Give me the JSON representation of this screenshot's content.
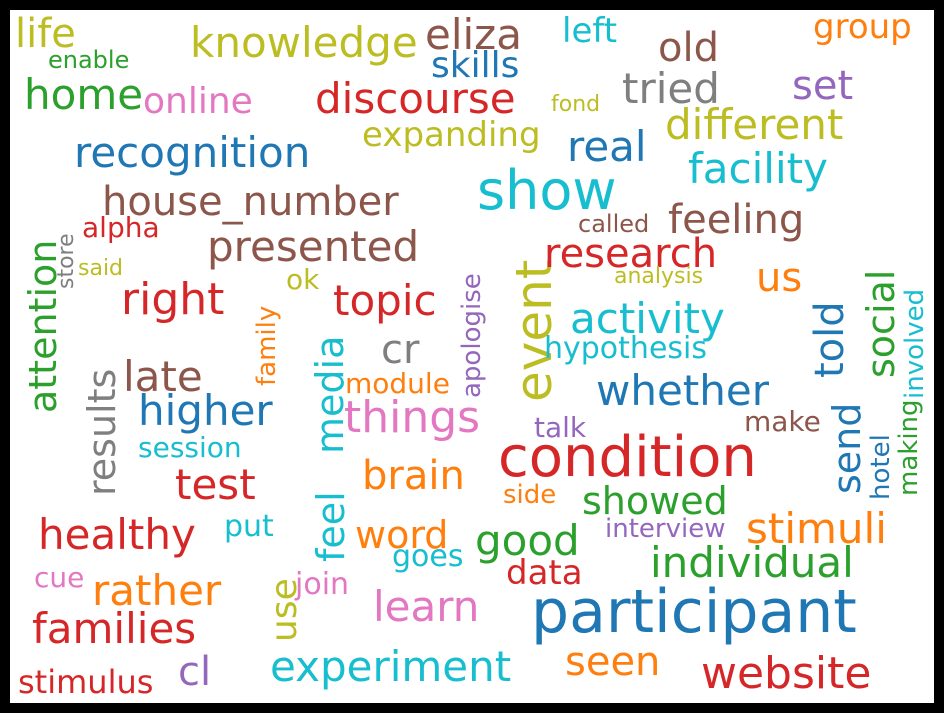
{
  "palette": {
    "blue": "#1f77b4",
    "orange": "#ff7f0e",
    "green": "#2ca02c",
    "red": "#d62728",
    "purple": "#9467bd",
    "brown": "#8c564b",
    "pink": "#e377c2",
    "gray": "#7f7f7f",
    "olive": "#bcbd22",
    "cyan": "#17becf"
  },
  "words": [
    {
      "id": "life",
      "text": "life",
      "color": "olive"
    },
    {
      "id": "enable",
      "text": "enable",
      "color": "green"
    },
    {
      "id": "home",
      "text": "home",
      "color": "green"
    },
    {
      "id": "knowledge",
      "text": "knowledge",
      "color": "olive"
    },
    {
      "id": "online",
      "text": "online",
      "color": "pink"
    },
    {
      "id": "eliza",
      "text": "eliza",
      "color": "brown"
    },
    {
      "id": "skills",
      "text": "skills",
      "color": "blue"
    },
    {
      "id": "left",
      "text": "left",
      "color": "cyan"
    },
    {
      "id": "old",
      "text": "old",
      "color": "brown"
    },
    {
      "id": "group",
      "text": "group",
      "color": "orange"
    },
    {
      "id": "discourse",
      "text": "discourse",
      "color": "red"
    },
    {
      "id": "fond",
      "text": "fond",
      "color": "olive"
    },
    {
      "id": "tried",
      "text": "tried",
      "color": "gray"
    },
    {
      "id": "set",
      "text": "set",
      "color": "purple"
    },
    {
      "id": "different",
      "text": "different",
      "color": "olive"
    },
    {
      "id": "expanding",
      "text": "expanding",
      "color": "olive"
    },
    {
      "id": "real",
      "text": "real",
      "color": "blue"
    },
    {
      "id": "recognition",
      "text": "recognition",
      "color": "blue"
    },
    {
      "id": "facility",
      "text": "facility",
      "color": "cyan"
    },
    {
      "id": "show",
      "text": "show",
      "color": "cyan"
    },
    {
      "id": "house_number",
      "text": "house_number",
      "color": "brown"
    },
    {
      "id": "feeling",
      "text": "feeling",
      "color": "brown"
    },
    {
      "id": "called",
      "text": "called",
      "color": "brown"
    },
    {
      "id": "attention",
      "text": "attention",
      "color": "green",
      "v": true
    },
    {
      "id": "store",
      "text": "store",
      "color": "gray",
      "v": true
    },
    {
      "id": "alpha",
      "text": "alpha",
      "color": "red"
    },
    {
      "id": "presented",
      "text": "presented",
      "color": "brown"
    },
    {
      "id": "apologise",
      "text": "apologise",
      "color": "purple",
      "v": true
    },
    {
      "id": "event",
      "text": "event",
      "color": "olive",
      "v": true
    },
    {
      "id": "research",
      "text": "research",
      "color": "red"
    },
    {
      "id": "involved",
      "text": "involved",
      "color": "cyan",
      "v": true
    },
    {
      "id": "said",
      "text": "said",
      "color": "olive"
    },
    {
      "id": "analysis",
      "text": "analysis",
      "color": "olive"
    },
    {
      "id": "us",
      "text": "us",
      "color": "orange"
    },
    {
      "id": "social",
      "text": "social",
      "color": "green",
      "v": true
    },
    {
      "id": "right",
      "text": "right",
      "color": "red"
    },
    {
      "id": "ok",
      "text": "ok",
      "color": "olive"
    },
    {
      "id": "topic",
      "text": "topic",
      "color": "red"
    },
    {
      "id": "family",
      "text": "family",
      "color": "orange",
      "v": true
    },
    {
      "id": "activity",
      "text": "activity",
      "color": "cyan"
    },
    {
      "id": "told",
      "text": "told",
      "color": "blue",
      "v": true
    },
    {
      "id": "results",
      "text": "results",
      "color": "gray",
      "v": true
    },
    {
      "id": "cr",
      "text": "cr",
      "color": "gray"
    },
    {
      "id": "hypothesis",
      "text": "hypothesis",
      "color": "cyan"
    },
    {
      "id": "late",
      "text": "late",
      "color": "brown"
    },
    {
      "id": "media",
      "text": "media",
      "color": "cyan",
      "v": true
    },
    {
      "id": "module",
      "text": "module",
      "color": "orange"
    },
    {
      "id": "whether",
      "text": "whether",
      "color": "blue"
    },
    {
      "id": "higher",
      "text": "higher",
      "color": "blue"
    },
    {
      "id": "things",
      "text": "things",
      "color": "pink"
    },
    {
      "id": "send",
      "text": "send",
      "color": "blue",
      "v": true
    },
    {
      "id": "hotel",
      "text": "hotel",
      "color": "blue",
      "v": true
    },
    {
      "id": "making",
      "text": "making",
      "color": "green",
      "v": true
    },
    {
      "id": "make",
      "text": "make",
      "color": "brown"
    },
    {
      "id": "talk",
      "text": "talk",
      "color": "purple"
    },
    {
      "id": "session",
      "text": "session",
      "color": "cyan"
    },
    {
      "id": "condition",
      "text": "condition",
      "color": "red"
    },
    {
      "id": "feel",
      "text": "feel",
      "color": "cyan",
      "v": true
    },
    {
      "id": "test",
      "text": "test",
      "color": "red"
    },
    {
      "id": "brain",
      "text": "brain",
      "color": "orange"
    },
    {
      "id": "side",
      "text": "side",
      "color": "orange"
    },
    {
      "id": "showed",
      "text": "showed",
      "color": "green"
    },
    {
      "id": "stimuli",
      "text": "stimuli",
      "color": "orange"
    },
    {
      "id": "healthy",
      "text": "healthy",
      "color": "red"
    },
    {
      "id": "put",
      "text": "put",
      "color": "cyan"
    },
    {
      "id": "word",
      "text": "word",
      "color": "orange"
    },
    {
      "id": "good",
      "text": "good",
      "color": "green"
    },
    {
      "id": "interview",
      "text": "interview",
      "color": "purple"
    },
    {
      "id": "goes",
      "text": "goes",
      "color": "cyan"
    },
    {
      "id": "individual",
      "text": "individual",
      "color": "green"
    },
    {
      "id": "cue",
      "text": "cue",
      "color": "pink"
    },
    {
      "id": "data",
      "text": "data",
      "color": "red"
    },
    {
      "id": "rather",
      "text": "rather",
      "color": "orange"
    },
    {
      "id": "use",
      "text": "use",
      "color": "olive",
      "v": true
    },
    {
      "id": "join",
      "text": "join",
      "color": "pink"
    },
    {
      "id": "families",
      "text": "families",
      "color": "red"
    },
    {
      "id": "learn",
      "text": "learn",
      "color": "pink"
    },
    {
      "id": "participant",
      "text": "participant",
      "color": "blue"
    },
    {
      "id": "seen",
      "text": "seen",
      "color": "orange"
    },
    {
      "id": "experiment",
      "text": "experiment",
      "color": "cyan"
    },
    {
      "id": "stimulus",
      "text": "stimulus",
      "color": "red"
    },
    {
      "id": "cl",
      "text": "cl",
      "color": "purple"
    },
    {
      "id": "website",
      "text": "website",
      "color": "red"
    }
  ]
}
